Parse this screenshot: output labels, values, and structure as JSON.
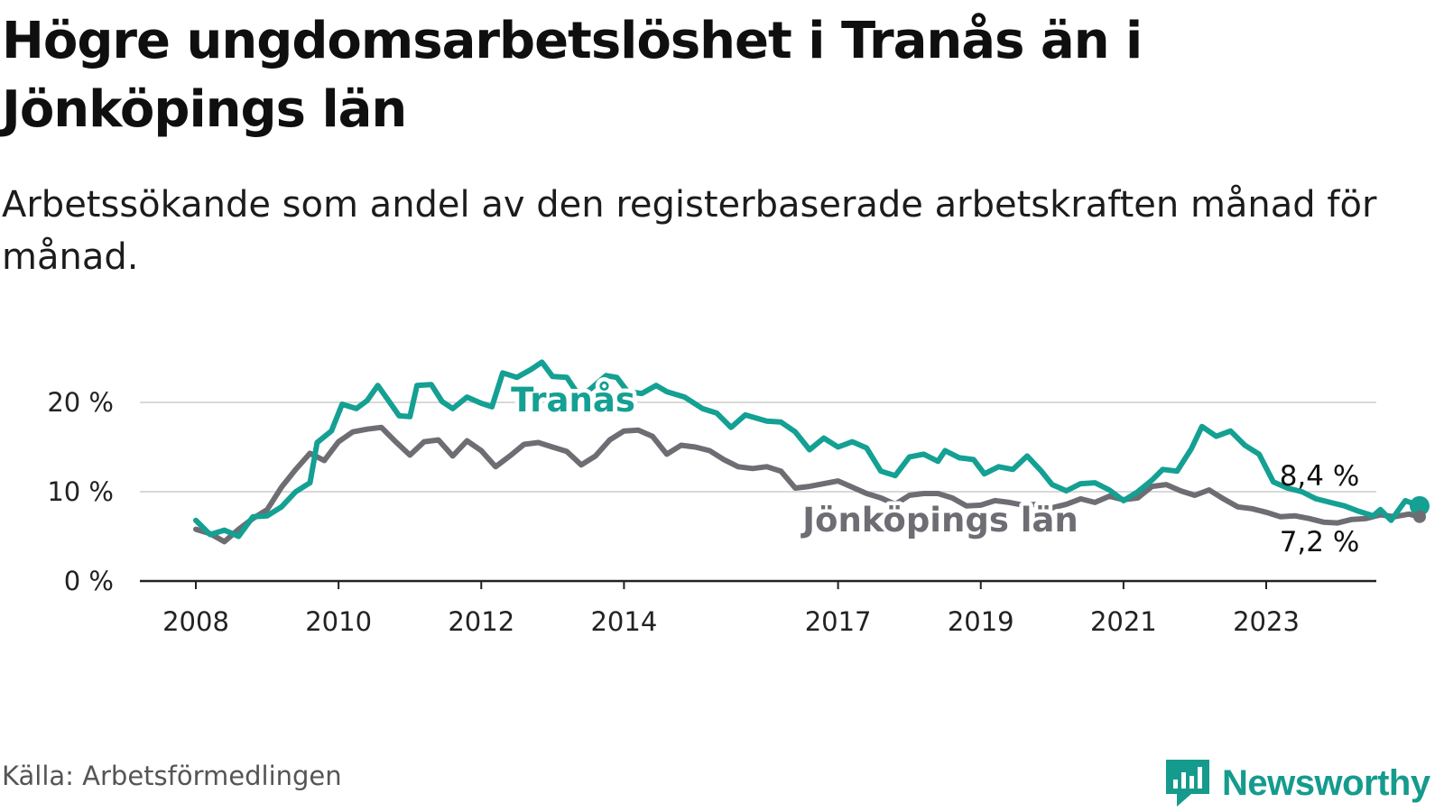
{
  "title": "Högre ungdomsarbetslöshet i Tranås än i Jönköpings län",
  "subtitle": "Arbetssökande som andel av den registerbaserade arbetskraften månad för månad.",
  "source": "Källa: Arbetsförmedlingen",
  "brand": {
    "name": "Newsworthy",
    "color": "#159b8e",
    "icon": "newsworthy-logo-icon"
  },
  "chart_data": {
    "type": "line",
    "title": "Högre ungdomsarbetslöshet i Tranås än i Jönköpings län",
    "xlabel": "",
    "ylabel": "",
    "xlim": [
      2008,
      2024.6
    ],
    "ylim": [
      0,
      26
    ],
    "x_ticks": [
      {
        "value": 2008,
        "label": "2008"
      },
      {
        "value": 2010,
        "label": "2010"
      },
      {
        "value": 2012,
        "label": "2012"
      },
      {
        "value": 2014,
        "label": "2014"
      },
      {
        "value": 2017,
        "label": "2017"
      },
      {
        "value": 2019,
        "label": "2019"
      },
      {
        "value": 2021,
        "label": "2021"
      },
      {
        "value": 2023,
        "label": "2023"
      }
    ],
    "y_ticks": [
      {
        "value": 0,
        "label": "0 %"
      },
      {
        "value": 10,
        "label": "10 %"
      },
      {
        "value": 20,
        "label": "20 %"
      }
    ],
    "grid": true,
    "series": [
      {
        "name": "Tranås",
        "color": "#14a093",
        "end_label": "8,4 %",
        "points": [
          [
            2008.0,
            6.8
          ],
          [
            2008.2,
            5.2
          ],
          [
            2008.4,
            5.7
          ],
          [
            2008.6,
            5.0
          ],
          [
            2008.8,
            7.2
          ],
          [
            2009.0,
            7.3
          ],
          [
            2009.2,
            8.3
          ],
          [
            2009.4,
            10.0
          ],
          [
            2009.6,
            11.0
          ],
          [
            2009.7,
            15.5
          ],
          [
            2009.9,
            16.8
          ],
          [
            2010.05,
            19.8
          ],
          [
            2010.25,
            19.3
          ],
          [
            2010.4,
            20.2
          ],
          [
            2010.55,
            21.9
          ],
          [
            2010.7,
            20.2
          ],
          [
            2010.85,
            18.5
          ],
          [
            2011.0,
            18.4
          ],
          [
            2011.1,
            21.9
          ],
          [
            2011.3,
            22.0
          ],
          [
            2011.45,
            20.1
          ],
          [
            2011.6,
            19.3
          ],
          [
            2011.8,
            20.6
          ],
          [
            2012.0,
            19.9
          ],
          [
            2012.15,
            19.5
          ],
          [
            2012.3,
            23.3
          ],
          [
            2012.5,
            22.8
          ],
          [
            2012.7,
            23.7
          ],
          [
            2012.85,
            24.5
          ],
          [
            2013.0,
            22.9
          ],
          [
            2013.2,
            22.8
          ],
          [
            2013.35,
            21.0
          ],
          [
            2013.5,
            21.3
          ],
          [
            2013.75,
            23.0
          ],
          [
            2013.9,
            22.8
          ],
          [
            2014.05,
            21.2
          ],
          [
            2014.25,
            21.0
          ],
          [
            2014.45,
            21.9
          ],
          [
            2014.6,
            21.2
          ],
          [
            2014.85,
            20.6
          ],
          [
            2015.1,
            19.3
          ],
          [
            2015.3,
            18.8
          ],
          [
            2015.5,
            17.2
          ],
          [
            2015.7,
            18.6
          ],
          [
            2016.0,
            17.9
          ],
          [
            2016.2,
            17.8
          ],
          [
            2016.4,
            16.7
          ],
          [
            2016.6,
            14.7
          ],
          [
            2016.8,
            16.0
          ],
          [
            2017.0,
            15.0
          ],
          [
            2017.2,
            15.6
          ],
          [
            2017.4,
            14.9
          ],
          [
            2017.6,
            12.3
          ],
          [
            2017.8,
            11.8
          ],
          [
            2018.0,
            13.9
          ],
          [
            2018.2,
            14.2
          ],
          [
            2018.4,
            13.4
          ],
          [
            2018.5,
            14.6
          ],
          [
            2018.7,
            13.8
          ],
          [
            2018.9,
            13.6
          ],
          [
            2019.05,
            12.0
          ],
          [
            2019.25,
            12.8
          ],
          [
            2019.45,
            12.5
          ],
          [
            2019.65,
            14.0
          ],
          [
            2019.85,
            12.3
          ],
          [
            2020.0,
            10.8
          ],
          [
            2020.2,
            10.1
          ],
          [
            2020.4,
            10.9
          ],
          [
            2020.6,
            11.0
          ],
          [
            2020.8,
            10.2
          ],
          [
            2021.0,
            9.0
          ],
          [
            2021.2,
            10.0
          ],
          [
            2021.4,
            11.3
          ],
          [
            2021.55,
            12.5
          ],
          [
            2021.75,
            12.3
          ],
          [
            2021.95,
            14.8
          ],
          [
            2022.1,
            17.3
          ],
          [
            2022.3,
            16.2
          ],
          [
            2022.5,
            16.8
          ],
          [
            2022.7,
            15.2
          ],
          [
            2022.9,
            14.2
          ],
          [
            2023.1,
            11.1
          ],
          [
            2023.3,
            10.4
          ],
          [
            2023.5,
            10.0
          ],
          [
            2023.7,
            9.2
          ],
          [
            2023.9,
            8.8
          ],
          [
            2024.1,
            8.4
          ],
          [
            2024.3,
            7.8
          ],
          [
            2024.5,
            7.3
          ],
          [
            2024.6,
            8.0
          ],
          [
            2024.75,
            6.8
          ],
          [
            2024.95,
            9.0
          ],
          [
            2025.15,
            8.4
          ]
        ]
      },
      {
        "name": "Jönköpings län",
        "color": "#6e6d73",
        "end_label": "7,2 %",
        "points": [
          [
            2008.0,
            5.8
          ],
          [
            2008.2,
            5.3
          ],
          [
            2008.4,
            4.4
          ],
          [
            2008.6,
            5.8
          ],
          [
            2008.8,
            7.0
          ],
          [
            2009.0,
            8.0
          ],
          [
            2009.2,
            10.5
          ],
          [
            2009.4,
            12.5
          ],
          [
            2009.6,
            14.3
          ],
          [
            2009.8,
            13.5
          ],
          [
            2010.0,
            15.6
          ],
          [
            2010.2,
            16.7
          ],
          [
            2010.4,
            17.0
          ],
          [
            2010.6,
            17.2
          ],
          [
            2010.8,
            15.6
          ],
          [
            2011.0,
            14.1
          ],
          [
            2011.2,
            15.6
          ],
          [
            2011.4,
            15.8
          ],
          [
            2011.6,
            14.0
          ],
          [
            2011.8,
            15.7
          ],
          [
            2012.0,
            14.6
          ],
          [
            2012.2,
            12.8
          ],
          [
            2012.4,
            14.0
          ],
          [
            2012.6,
            15.3
          ],
          [
            2012.8,
            15.5
          ],
          [
            2013.0,
            15.0
          ],
          [
            2013.2,
            14.5
          ],
          [
            2013.4,
            13.0
          ],
          [
            2013.6,
            14.0
          ],
          [
            2013.8,
            15.8
          ],
          [
            2014.0,
            16.8
          ],
          [
            2014.2,
            16.9
          ],
          [
            2014.4,
            16.2
          ],
          [
            2014.6,
            14.2
          ],
          [
            2014.8,
            15.2
          ],
          [
            2015.0,
            15.0
          ],
          [
            2015.2,
            14.6
          ],
          [
            2015.4,
            13.6
          ],
          [
            2015.6,
            12.8
          ],
          [
            2015.8,
            12.6
          ],
          [
            2016.0,
            12.8
          ],
          [
            2016.2,
            12.3
          ],
          [
            2016.4,
            10.4
          ],
          [
            2016.6,
            10.6
          ],
          [
            2016.8,
            10.9
          ],
          [
            2017.0,
            11.2
          ],
          [
            2017.2,
            10.5
          ],
          [
            2017.4,
            9.8
          ],
          [
            2017.6,
            9.3
          ],
          [
            2017.8,
            8.6
          ],
          [
            2018.0,
            9.6
          ],
          [
            2018.2,
            9.8
          ],
          [
            2018.4,
            9.8
          ],
          [
            2018.6,
            9.3
          ],
          [
            2018.8,
            8.4
          ],
          [
            2019.0,
            8.5
          ],
          [
            2019.2,
            9.0
          ],
          [
            2019.4,
            8.8
          ],
          [
            2019.6,
            8.5
          ],
          [
            2019.8,
            8.6
          ],
          [
            2020.0,
            8.2
          ],
          [
            2020.2,
            8.6
          ],
          [
            2020.4,
            9.2
          ],
          [
            2020.6,
            8.8
          ],
          [
            2020.8,
            9.5
          ],
          [
            2021.0,
            9.1
          ],
          [
            2021.2,
            9.3
          ],
          [
            2021.4,
            10.6
          ],
          [
            2021.6,
            10.8
          ],
          [
            2021.8,
            10.1
          ],
          [
            2022.0,
            9.6
          ],
          [
            2022.2,
            10.2
          ],
          [
            2022.4,
            9.2
          ],
          [
            2022.6,
            8.3
          ],
          [
            2022.8,
            8.1
          ],
          [
            2023.0,
            7.7
          ],
          [
            2023.2,
            7.2
          ],
          [
            2023.4,
            7.3
          ],
          [
            2023.6,
            7.0
          ],
          [
            2023.8,
            6.6
          ],
          [
            2024.0,
            6.5
          ],
          [
            2024.2,
            6.9
          ],
          [
            2024.4,
            7.0
          ],
          [
            2024.6,
            7.4
          ],
          [
            2024.8,
            7.2
          ],
          [
            2025.0,
            7.5
          ],
          [
            2025.15,
            7.2
          ]
        ]
      }
    ]
  }
}
